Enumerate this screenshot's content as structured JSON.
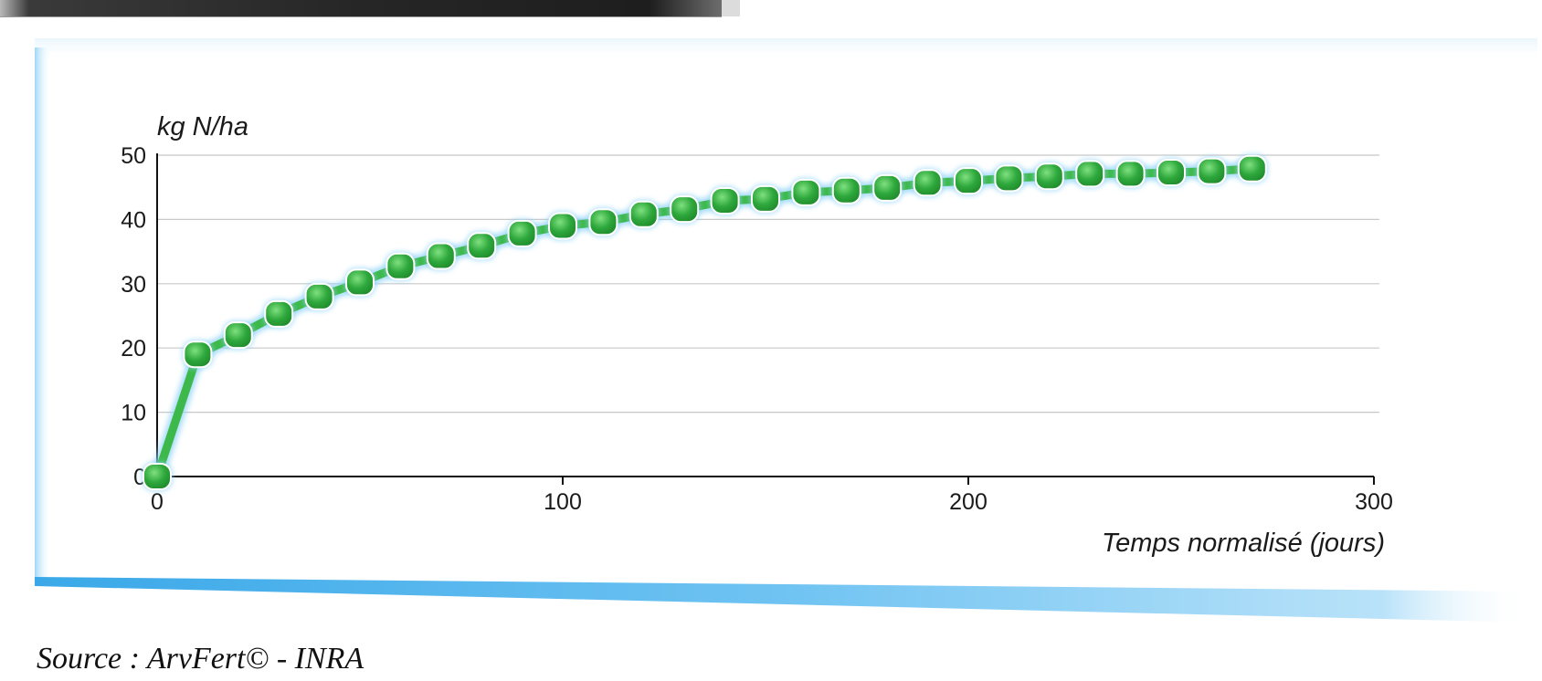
{
  "chart_data": {
    "type": "line",
    "ylabel": "kg N/ha",
    "xlabel": "Temps normalisé (jours)",
    "xlim": [
      0,
      300
    ],
    "ylim": [
      0,
      50
    ],
    "xticks": [
      0,
      100,
      200,
      300
    ],
    "yticks": [
      0,
      10,
      20,
      30,
      40,
      50
    ],
    "grid": "horizontal",
    "line_color": "#3cb94a",
    "marker_color": "#2ea83c",
    "glow_color": "#8fd3f7",
    "x": [
      0,
      10,
      20,
      30,
      40,
      50,
      60,
      70,
      80,
      90,
      100,
      110,
      120,
      130,
      140,
      150,
      160,
      170,
      180,
      190,
      200,
      210,
      220,
      230,
      240,
      250,
      260,
      270
    ],
    "y": [
      0,
      19,
      22,
      25.3,
      28,
      30.2,
      32.7,
      34.3,
      35.9,
      37.8,
      39,
      39.6,
      40.8,
      41.6,
      42.9,
      43.2,
      44.2,
      44.5,
      44.9,
      45.7,
      46,
      46.4,
      46.7,
      47.1,
      47.1,
      47.3,
      47.5,
      47.9
    ]
  },
  "source": "Source : ArvFert© - INRA"
}
